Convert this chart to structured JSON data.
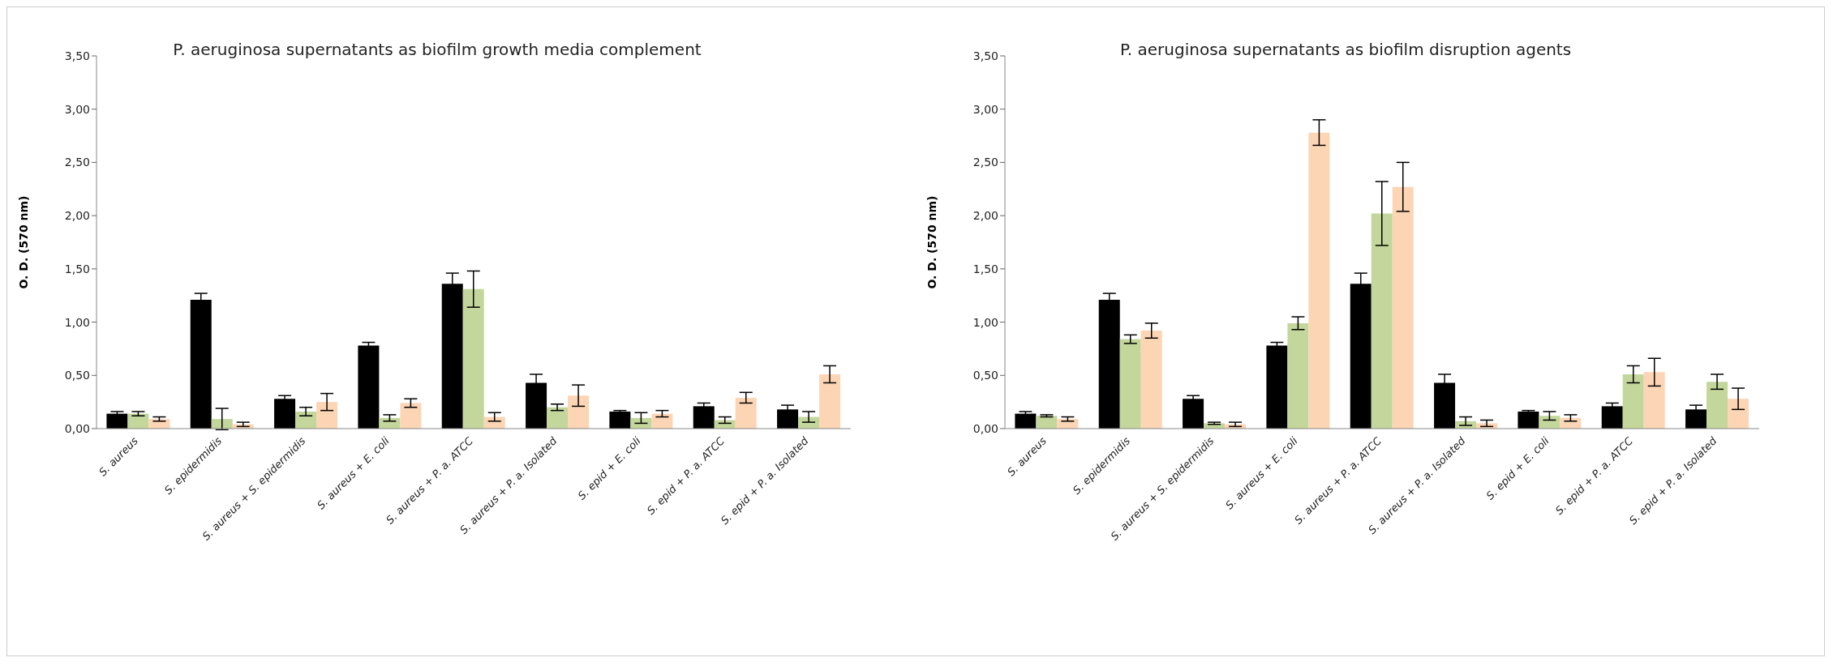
{
  "chart_data": [
    {
      "type": "bar",
      "title": "P. aeruginosa supernatants as biofilm growth media complement",
      "ylabel": "O. D. (570 nm)",
      "categories": [
        "S. aureus",
        "S. epidermidis",
        "S. aureus + S. epidermidis",
        "S. aureus + E. coli",
        "S. aureus + P. a. ATCC",
        "S. aureus + P. a. Isolated",
        "S. epid + E. coli",
        "S. epid + P. a. ATCC",
        "S. epid + P. a. Isolated"
      ],
      "series": [
        {
          "color": "#000000",
          "values": [
            0.14,
            1.21,
            0.28,
            0.78,
            1.36,
            0.43,
            0.16,
            0.21,
            0.18
          ],
          "errors": [
            0.02,
            0.06,
            0.03,
            0.03,
            0.1,
            0.08,
            0.01,
            0.03,
            0.04
          ]
        },
        {
          "color": "#c3d69b",
          "values": [
            0.14,
            0.09,
            0.16,
            0.1,
            1.31,
            0.2,
            0.1,
            0.08,
            0.11
          ],
          "errors": [
            0.02,
            0.1,
            0.04,
            0.03,
            0.17,
            0.03,
            0.05,
            0.03,
            0.05
          ]
        },
        {
          "color": "#fcd5b5",
          "values": [
            0.09,
            0.04,
            0.25,
            0.24,
            0.11,
            0.31,
            0.14,
            0.29,
            0.51
          ],
          "errors": [
            0.02,
            0.02,
            0.08,
            0.04,
            0.04,
            0.1,
            0.03,
            0.05,
            0.08
          ]
        }
      ],
      "ylim": [
        0,
        3.5
      ],
      "yticks": [
        {
          "value": 0,
          "label": "0,00"
        },
        {
          "value": 0.5,
          "label": "0,50"
        },
        {
          "value": 1,
          "label": "1,00"
        },
        {
          "value": 1.5,
          "label": "1,50"
        },
        {
          "value": 2,
          "label": "2,00"
        },
        {
          "value": 2.5,
          "label": "2,50"
        },
        {
          "value": 3,
          "label": "3,00"
        },
        {
          "value": 3.5,
          "label": "3,50"
        }
      ],
      "grid": false,
      "legend": false
    },
    {
      "type": "bar",
      "title": "P. aeruginosa supernatants as biofilm disruption agents",
      "ylabel": "O. D. (570 nm)",
      "categories": [
        "S. aureus",
        "S. epidermidis",
        "S. aureus + S. epidermidis",
        "S. aureus + E. coli",
        "S. aureus + P. a. ATCC",
        "S. aureus + P. a. Isolated",
        "S. epid + E. coli",
        "S. epid + P. a. ATCC",
        "S. epid + P. a. Isolated"
      ],
      "series": [
        {
          "color": "#000000",
          "values": [
            0.14,
            1.21,
            0.28,
            0.78,
            1.36,
            0.43,
            0.16,
            0.21,
            0.18
          ],
          "errors": [
            0.02,
            0.06,
            0.03,
            0.03,
            0.1,
            0.08,
            0.01,
            0.03,
            0.04
          ]
        },
        {
          "color": "#c3d69b",
          "values": [
            0.12,
            0.84,
            0.05,
            0.99,
            2.02,
            0.07,
            0.12,
            0.51,
            0.44
          ],
          "errors": [
            0.01,
            0.04,
            0.01,
            0.06,
            0.3,
            0.04,
            0.04,
            0.08,
            0.07
          ]
        },
        {
          "color": "#fcd5b5",
          "values": [
            0.09,
            0.92,
            0.04,
            2.78,
            2.27,
            0.05,
            0.1,
            0.53,
            0.28
          ],
          "errors": [
            0.02,
            0.07,
            0.02,
            0.12,
            0.23,
            0.03,
            0.03,
            0.13,
            0.1
          ]
        }
      ],
      "ylim": [
        0,
        3.5
      ],
      "yticks": [
        {
          "value": 0,
          "label": "0,00"
        },
        {
          "value": 0.5,
          "label": "0,50"
        },
        {
          "value": 1,
          "label": "1,00"
        },
        {
          "value": 1.5,
          "label": "1,50"
        },
        {
          "value": 2,
          "label": "2,00"
        },
        {
          "value": 2.5,
          "label": "2,50"
        },
        {
          "value": 3,
          "label": "3,00"
        },
        {
          "value": 3.5,
          "label": "3,50"
        }
      ],
      "grid": false,
      "legend": false
    }
  ]
}
